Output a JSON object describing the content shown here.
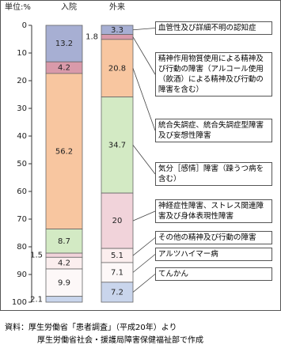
{
  "chart_data": {
    "type": "stacked_bar",
    "unit": "単位:%",
    "categories": [
      "入院",
      "外来"
    ],
    "ylim": [
      0,
      100
    ],
    "y_inverted": true,
    "yticks": [
      0,
      10,
      20,
      30,
      40,
      50,
      60,
      70,
      80,
      90,
      100
    ],
    "series": [
      {
        "name": "血管性及び詳細不明の認知症",
        "color": "#a7afd3",
        "values": [
          13.2,
          3.3
        ]
      },
      {
        "name": "精神作用物質使用による精神及び行動の障害（アルコール使用（飲酒）による精神及び行動の障害を含む）",
        "color": "#d99aaa",
        "values": [
          4.2,
          1.8
        ]
      },
      {
        "name": "統合失調症、統合失調症型障害及び妄想性障害",
        "color": "#f8c6a0",
        "values": [
          56.2,
          20.8
        ]
      },
      {
        "name": "気分［感情］障害（躁うつ病を含む）",
        "color": "#d3eac4",
        "values": [
          8.7,
          34.7
        ]
      },
      {
        "name": "神経症性障害、ストレス関連障害及び身体表現性障害",
        "color": "#f1d3da",
        "values": [
          1.5,
          20.0
        ]
      },
      {
        "name": "その他の精神及び行動の障害",
        "color": "#fbeeee",
        "values": [
          4.2,
          5.1
        ]
      },
      {
        "name": "アルツハイマー病",
        "color": "#fdf8f8",
        "values": [
          9.9,
          7.1
        ]
      },
      {
        "name": "てんかん",
        "color": "#c9d5ec",
        "values": [
          2.1,
          7.2
        ]
      }
    ],
    "notes": [
      "資料：厚生労働省「患者調査」（平成20年）より",
      "厚生労働省社会・援護局障害保健福祉部で作成"
    ]
  }
}
